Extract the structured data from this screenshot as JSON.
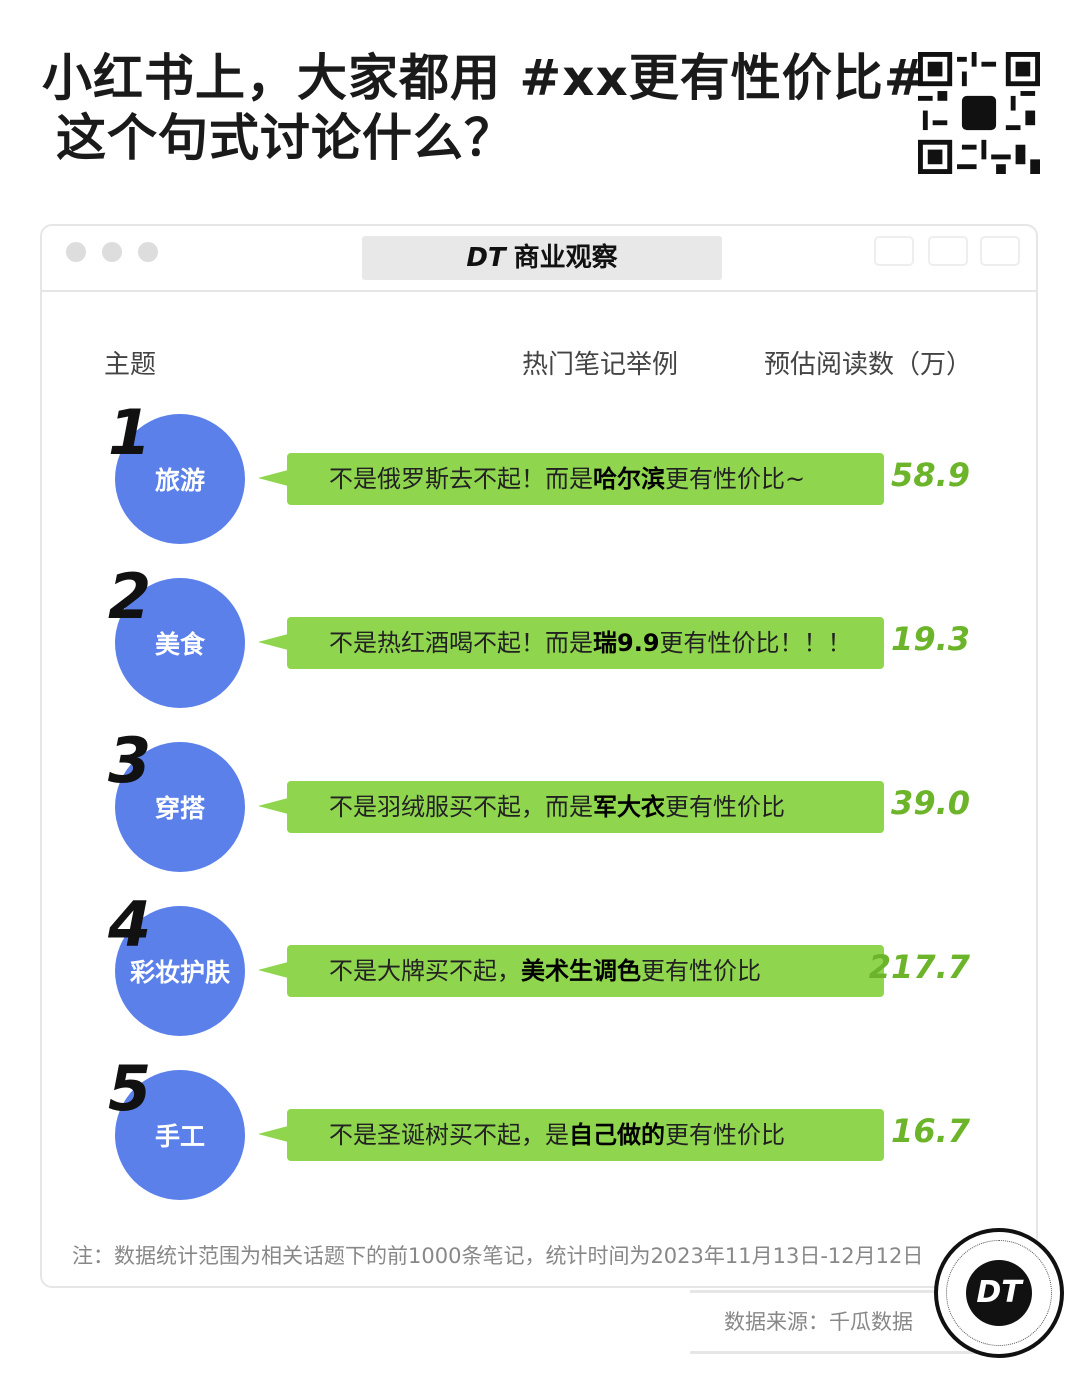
{
  "title": {
    "line1": "小红书上，大家都用 #xx更有性价比#",
    "line2": "这个句式讨论什么？"
  },
  "window": {
    "brand_mark": "DT",
    "brand_name": "商业观察"
  },
  "columns": {
    "topic": "主题",
    "example": "热门笔记举例",
    "reads": "预估阅读数（万）"
  },
  "rows": [
    {
      "rank": "1",
      "topic": "旅游",
      "pre": "不是俄罗斯去不起！而是",
      "bold": "哈尔滨",
      "post": "更有性价比~",
      "reads": "58.9"
    },
    {
      "rank": "2",
      "topic": "美食",
      "pre": "不是热红酒喝不起！而是",
      "bold": "瑞9.9",
      "post": "更有性价比！！！",
      "reads": "19.3"
    },
    {
      "rank": "3",
      "topic": "穿搭",
      "pre": "不是羽绒服买不起，而是",
      "bold": "军大衣",
      "post": "更有性价比",
      "reads": "39.0"
    },
    {
      "rank": "4",
      "topic": "彩妆护肤",
      "pre": "不是大牌买不起，",
      "bold": "美术生调色",
      "post": "更有性价比",
      "reads": "217.7"
    },
    {
      "rank": "5",
      "topic": "手工",
      "pre": "不是圣诞树买不起，是",
      "bold": "自己做的",
      "post": "更有性价比",
      "reads": "16.7"
    }
  ],
  "note": "注：数据统计范围为相关话题下的前1000条笔记，统计时间为2023年11月13日-12月12日",
  "source": "数据来源：千瓜数据",
  "logo": "DT",
  "colors": {
    "circle": "#5b80ea",
    "bubble": "#8fd64e",
    "value": "#6cb52a"
  }
}
